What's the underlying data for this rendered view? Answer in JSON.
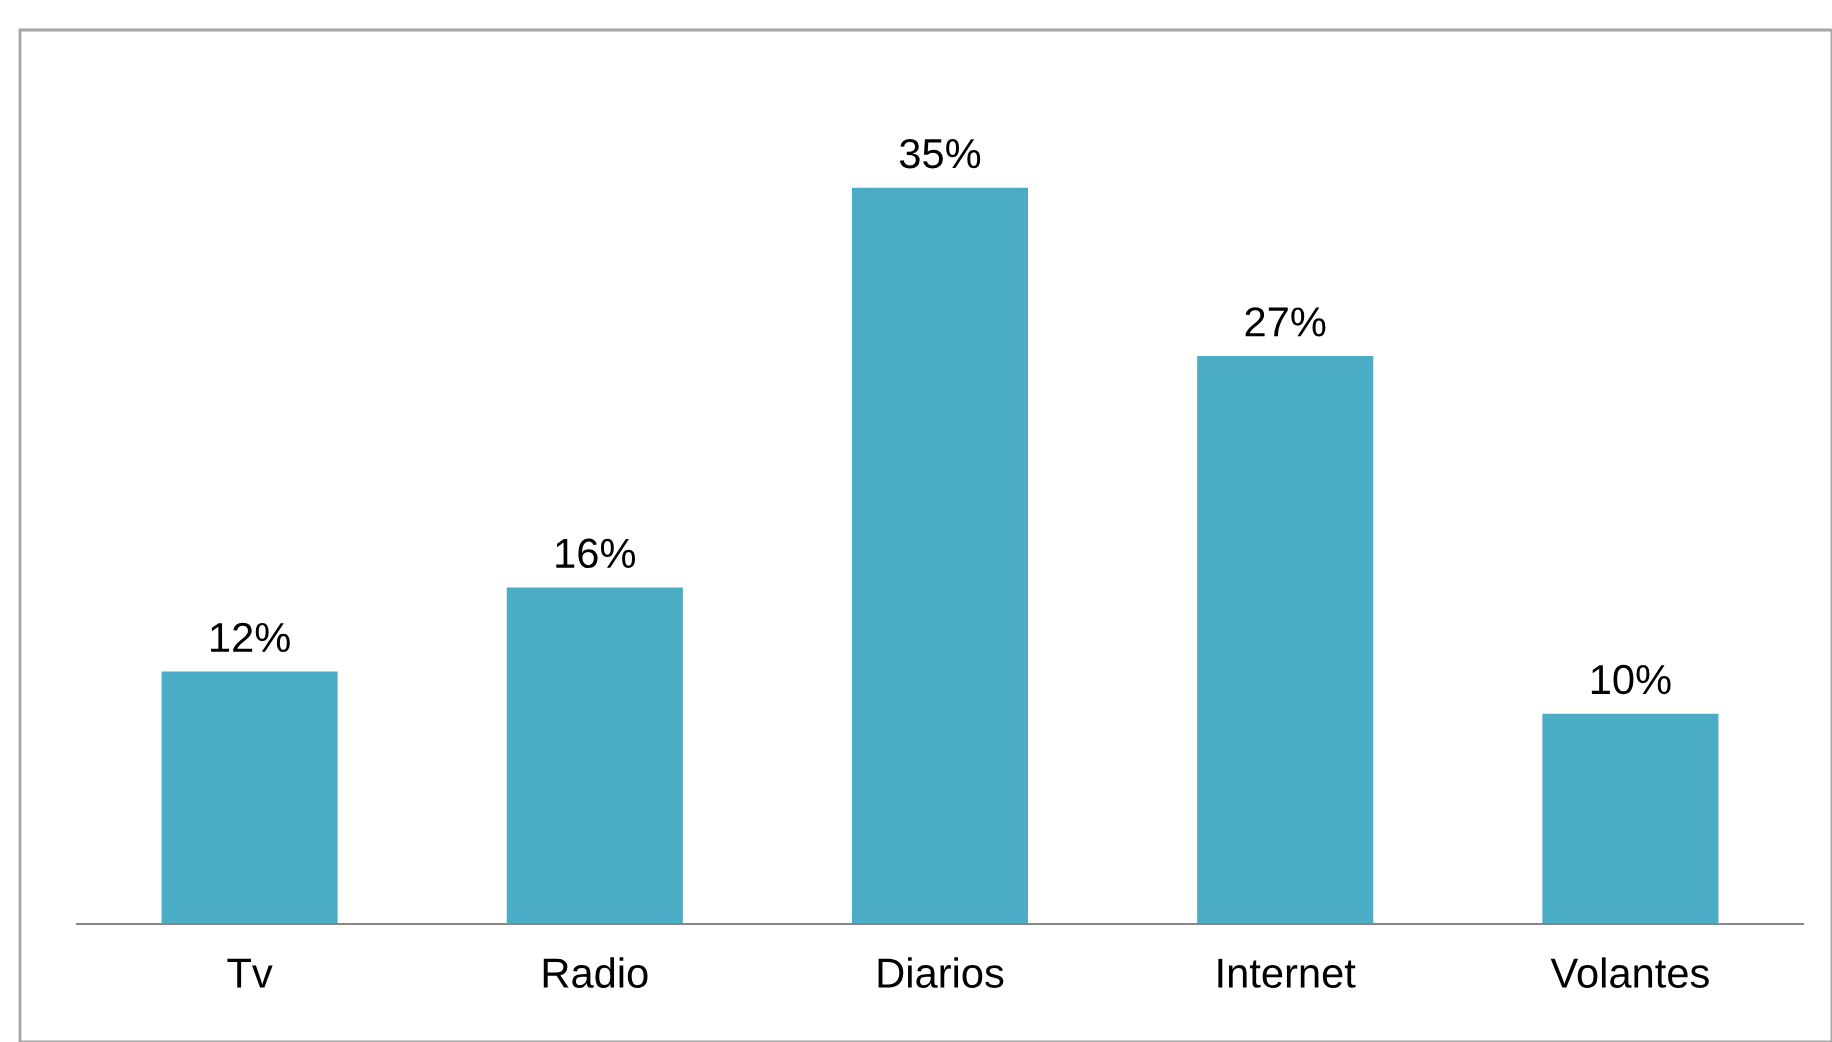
{
  "chart_data": {
    "type": "bar",
    "categories": [
      "Tv",
      "Radio",
      "Diarios",
      "Internet",
      "Volantes"
    ],
    "values": [
      12,
      16,
      35,
      27,
      10
    ],
    "value_labels": [
      "12%",
      "16%",
      "35%",
      "27%",
      "10%"
    ],
    "color": "#4bacc6",
    "ylim": [
      0,
      42.5
    ],
    "tick_labels": "x",
    "grid": false,
    "legend": false
  }
}
